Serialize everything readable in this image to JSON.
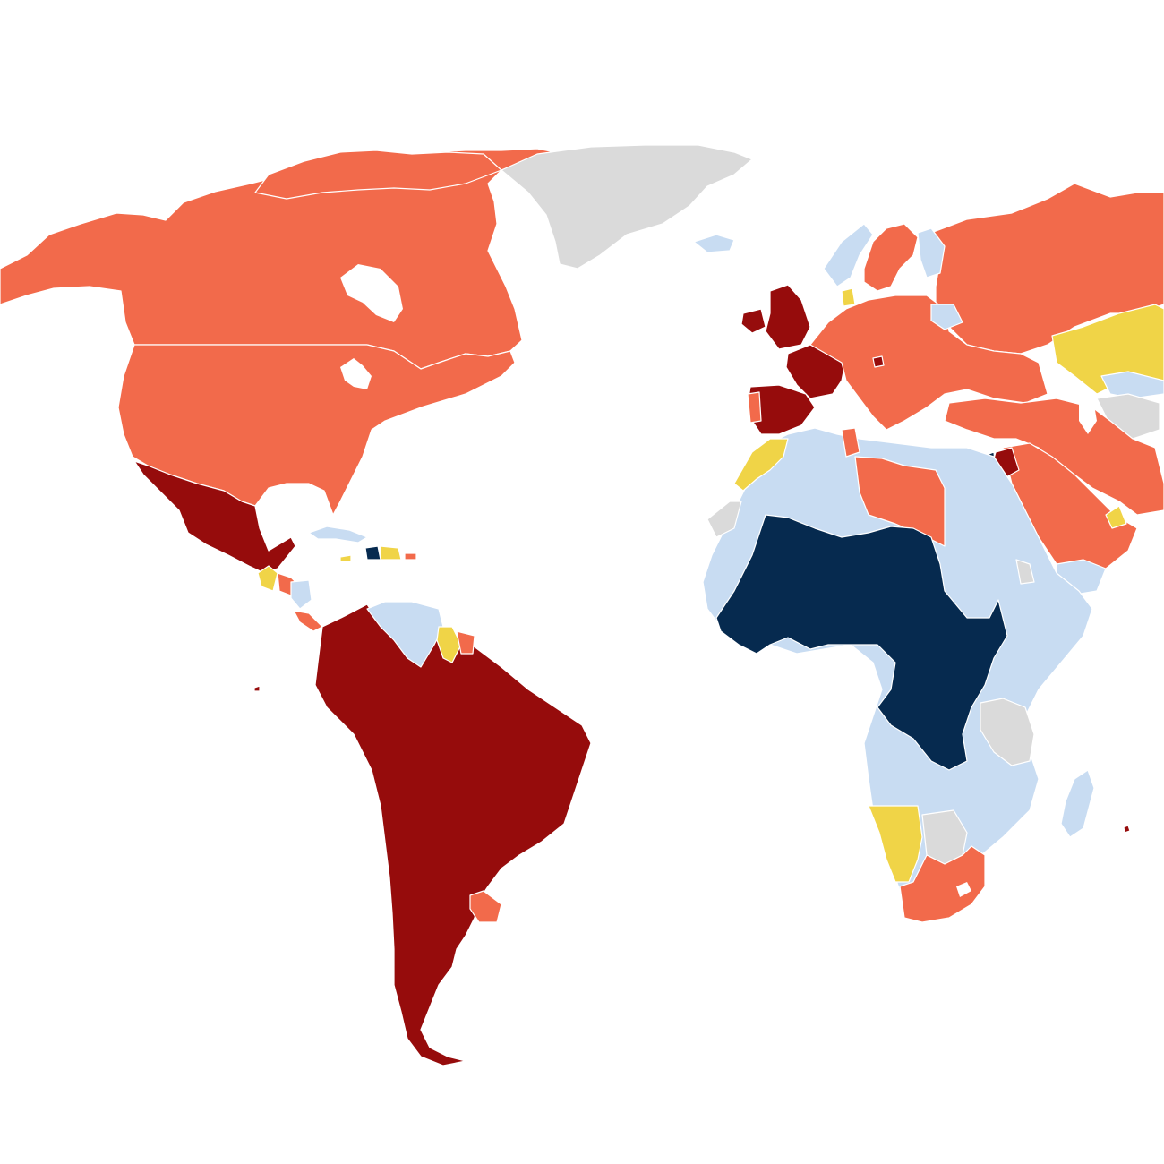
{
  "map": {
    "type": "choropleth world map",
    "categories": [
      {
        "key": "light_gray",
        "color": "#dadada"
      },
      {
        "key": "pale_blue",
        "color": "#c8dcf2"
      },
      {
        "key": "navy",
        "color": "#062a4f"
      },
      {
        "key": "yellow",
        "color": "#f0d447"
      },
      {
        "key": "coral",
        "color": "#f26a4b"
      },
      {
        "key": "dark_red",
        "color": "#960c0c"
      }
    ],
    "lakes_color": "#ffffff"
  }
}
